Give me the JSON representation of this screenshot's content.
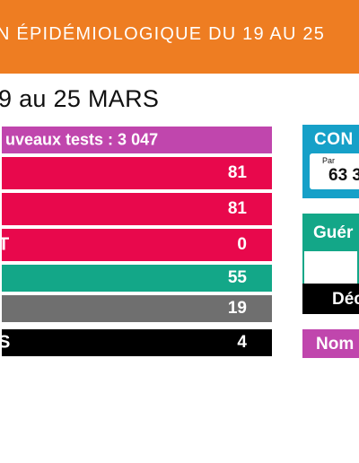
{
  "banner": {
    "title": "N ÉPIDÉMIOLOGIQUE DU 19 AU 25",
    "color": "#ee7d22"
  },
  "period": "9 au 25 MARS",
  "rows": {
    "tests": {
      "label": "uveaux tests : 3 047",
      "color": "#c046ad"
    },
    "a": {
      "label": "",
      "value": "81",
      "color": "#e8084c"
    },
    "b": {
      "label": "",
      "value": "81",
      "color": "#e8084c"
    },
    "c": {
      "label": "T",
      "value": "0",
      "color": "#e8084c"
    },
    "d": {
      "label": "",
      "value": "55",
      "color": "#13a788"
    },
    "e": {
      "label": "",
      "value": "19",
      "color": "#6f6f6f"
    },
    "f": {
      "label": "S",
      "value": "4",
      "color": "#000000"
    }
  },
  "side": {
    "confirmes": {
      "title": "CON",
      "card_sub": "Par",
      "card_value": "63 3",
      "color": "#16a0c8"
    },
    "gueris": {
      "title": "Guér",
      "color": "#13a788"
    },
    "deces": {
      "title": "Déc",
      "color": "#000000"
    },
    "nombre": {
      "title": "Nom",
      "color": "#c046ad"
    }
  }
}
